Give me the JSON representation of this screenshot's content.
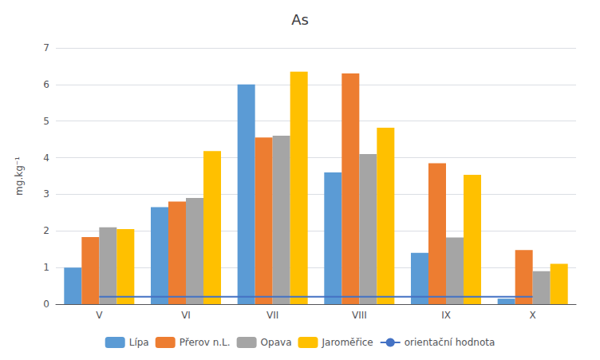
{
  "chart_data": {
    "type": "bar",
    "title": "As",
    "ylabel": "mg.kg⁻¹",
    "categories": [
      "V",
      "VI",
      "VII",
      "VIII",
      "IX",
      "X"
    ],
    "series": [
      {
        "name": "Lípa",
        "color": "#5B9BD5",
        "values": [
          1.0,
          2.65,
          6.0,
          3.6,
          1.4,
          0.15
        ]
      },
      {
        "name": "Přerov n.L.",
        "color": "#ED7D31",
        "values": [
          1.83,
          2.8,
          4.55,
          6.3,
          3.85,
          1.48
        ]
      },
      {
        "name": "Opava",
        "color": "#A5A5A5",
        "values": [
          2.1,
          2.9,
          4.6,
          4.1,
          1.82,
          0.9
        ]
      },
      {
        "name": "Jaroměřice",
        "color": "#FFC000",
        "values": [
          2.05,
          4.18,
          6.35,
          4.82,
          3.53,
          1.1
        ]
      },
      {
        "name": "orientační hodnota",
        "type": "line",
        "color": "#4472C4",
        "values": [
          0.2,
          0.2,
          0.2,
          0.2,
          0.2,
          0.2
        ]
      }
    ],
    "ylim": [
      0,
      7
    ],
    "yticks": [
      0,
      1,
      2,
      3,
      4,
      5,
      6,
      7
    ],
    "grid": true,
    "legend": "bottom"
  }
}
